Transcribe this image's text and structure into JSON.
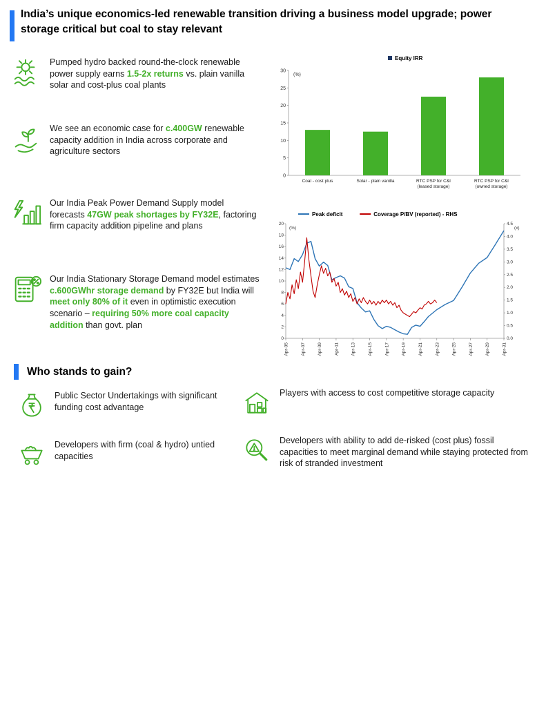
{
  "header": {
    "title": "India’s unique economics-led renewable transition driving a business model upgrade; power storage critical but coal to stay relevant",
    "accent_color": "#2378f3"
  },
  "colors": {
    "green_accent": "#43b02a",
    "blue_accent": "#2378f3",
    "legend_navy": "#1f3864",
    "peak_deficit_blue": "#2e75b6",
    "coverage_red": "#c00000"
  },
  "insights": [
    {
      "icon": "pumped-hydro-icon",
      "segments": [
        {
          "t": "Pumped hydro backed round-the-clock renewable power supply earns ",
          "h": false
        },
        {
          "t": "1.5-2x returns",
          "h": true
        },
        {
          "t": " vs. plain vanilla solar and cost-plus coal plants",
          "h": false
        }
      ]
    },
    {
      "icon": "hand-plant-icon",
      "segments": [
        {
          "t": "We see an economic case for ",
          "h": false
        },
        {
          "t": "c.400GW",
          "h": true
        },
        {
          "t": " renewable capacity addition in India across corporate and agriculture sectors",
          "h": false
        }
      ]
    },
    {
      "icon": "power-demand-icon",
      "segments": [
        {
          "t": "Our India Peak Power Demand Supply model forecasts ",
          "h": false
        },
        {
          "t": "47GW peak shortages by FY32E",
          "h": true
        },
        {
          "t": ", factoring firm capacity addition pipeline and plans",
          "h": false
        }
      ]
    },
    {
      "icon": "calculator-icon",
      "segments": [
        {
          "t": "Our India Stationary Storage Demand model estimates ",
          "h": false
        },
        {
          "t": "c.600GWhr storage demand",
          "h": true
        },
        {
          "t": " by FY32E but India will ",
          "h": false
        },
        {
          "t": "meet only 80% of it",
          "h": true
        },
        {
          "t": " even in optimistic execution scenario – ",
          "h": false
        },
        {
          "t": "requiring 50% more coal capacity addition",
          "h": true
        },
        {
          "t": " than govt. plan",
          "h": false
        }
      ]
    }
  ],
  "gain_section": {
    "heading": "Who stands to gain?",
    "items": [
      {
        "icon": "money-bag-icon",
        "text": "Public Sector Undertakings with significant funding cost advantage"
      },
      {
        "icon": "mine-cart-icon",
        "text": "Developers with firm (coal & hydro) untied capacities"
      },
      {
        "icon": "storage-warehouse-icon",
        "text": "Players with access to cost competitive storage capacity"
      },
      {
        "icon": "magnifier-alert-icon",
        "text": "Developers with ability to add de-risked (cost plus) fossil capacities to meet marginal demand while staying protected from risk of stranded investment"
      }
    ]
  },
  "chart_data": [
    {
      "type": "bar",
      "legend": "Equity IRR",
      "legend_color": "#1f3864",
      "unit": "(%)",
      "categories": [
        "Coal - cost plus",
        "Solar - plain vanilla",
        "RTC PSP for C&I\n(leased storage)",
        "RTC PSP for C&I\n(owned storage)"
      ],
      "values": [
        13,
        12.5,
        22.5,
        28
      ],
      "ylim": [
        0,
        30
      ],
      "ytick": 5,
      "bar_color": "#43b02a"
    },
    {
      "type": "line",
      "left_axis": {
        "label": "(%)",
        "min": 0,
        "max": 20,
        "step": 2
      },
      "right_axis": {
        "label": "(x)",
        "min": 0,
        "max": 4.5,
        "step": 0.5
      },
      "x_axis": {
        "min": 2005.25,
        "max": 2031.25,
        "tick_step": 2,
        "tick_labels": [
          "Apr-05",
          "Apr-07",
          "Apr-09",
          "Apr-11",
          "Apr-13",
          "Apr-15",
          "Apr-17",
          "Apr-19",
          "Apr-21",
          "Apr-23",
          "Apr-25",
          "Apr-27",
          "Apr-29",
          "Apr-31"
        ]
      },
      "series": [
        {
          "name": "Peak deficit",
          "color": "#2e75b6",
          "axis": "left",
          "points": [
            [
              2005.25,
              12.3
            ],
            [
              2005.75,
              12.0
            ],
            [
              2006.25,
              13.9
            ],
            [
              2006.75,
              13.4
            ],
            [
              2007.25,
              14.6
            ],
            [
              2007.75,
              16.6
            ],
            [
              2008.25,
              16.9
            ],
            [
              2008.75,
              13.9
            ],
            [
              2009.25,
              12.6
            ],
            [
              2009.75,
              13.3
            ],
            [
              2010.25,
              12.7
            ],
            [
              2010.75,
              10.2
            ],
            [
              2011.25,
              10.6
            ],
            [
              2011.75,
              10.9
            ],
            [
              2012.25,
              10.5
            ],
            [
              2012.75,
              9.0
            ],
            [
              2013.25,
              8.7
            ],
            [
              2013.75,
              6.2
            ],
            [
              2014.25,
              5.3
            ],
            [
              2014.75,
              4.6
            ],
            [
              2015.25,
              4.8
            ],
            [
              2015.75,
              3.3
            ],
            [
              2016.25,
              2.2
            ],
            [
              2016.75,
              1.7
            ],
            [
              2017.25,
              2.1
            ],
            [
              2017.75,
              1.9
            ],
            [
              2018.25,
              1.5
            ],
            [
              2018.75,
              1.1
            ],
            [
              2019.25,
              0.8
            ],
            [
              2019.75,
              0.7
            ],
            [
              2020.25,
              1.9
            ],
            [
              2020.75,
              2.3
            ],
            [
              2021.25,
              2.1
            ],
            [
              2021.75,
              2.9
            ],
            [
              2022.25,
              3.8
            ],
            [
              2022.75,
              4.4
            ],
            [
              2023.25,
              5.0
            ],
            [
              2024.25,
              5.9
            ],
            [
              2025.25,
              6.6
            ],
            [
              2026.25,
              8.9
            ],
            [
              2027.25,
              11.4
            ],
            [
              2028.25,
              13.1
            ],
            [
              2029.25,
              14.1
            ],
            [
              2030.25,
              16.4
            ],
            [
              2031.25,
              18.8
            ]
          ]
        },
        {
          "name": "Coverage P/BV (reported) - RHS",
          "color": "#c00000",
          "axis": "right",
          "points": [
            [
              2005.25,
              1.35
            ],
            [
              2005.5,
              1.8
            ],
            [
              2005.75,
              1.55
            ],
            [
              2006,
              2.1
            ],
            [
              2006.25,
              1.75
            ],
            [
              2006.5,
              2.3
            ],
            [
              2006.75,
              1.95
            ],
            [
              2007,
              2.6
            ],
            [
              2007.25,
              2.2
            ],
            [
              2007.5,
              3.0
            ],
            [
              2007.75,
              3.95
            ],
            [
              2008,
              3.1
            ],
            [
              2008.25,
              2.45
            ],
            [
              2008.5,
              1.85
            ],
            [
              2008.75,
              1.6
            ],
            [
              2009,
              2.1
            ],
            [
              2009.25,
              2.5
            ],
            [
              2009.5,
              2.85
            ],
            [
              2009.75,
              2.55
            ],
            [
              2010,
              2.75
            ],
            [
              2010.25,
              2.45
            ],
            [
              2010.5,
              2.6
            ],
            [
              2010.75,
              2.2
            ],
            [
              2011,
              2.35
            ],
            [
              2011.25,
              2.05
            ],
            [
              2011.5,
              2.2
            ],
            [
              2011.75,
              1.8
            ],
            [
              2012,
              1.95
            ],
            [
              2012.25,
              1.7
            ],
            [
              2012.5,
              1.85
            ],
            [
              2012.75,
              1.6
            ],
            [
              2013,
              1.75
            ],
            [
              2013.25,
              1.45
            ],
            [
              2013.5,
              1.6
            ],
            [
              2013.75,
              1.35
            ],
            [
              2014,
              1.55
            ],
            [
              2014.25,
              1.4
            ],
            [
              2014.5,
              1.6
            ],
            [
              2014.75,
              1.45
            ],
            [
              2015,
              1.35
            ],
            [
              2015.25,
              1.5
            ],
            [
              2015.5,
              1.35
            ],
            [
              2015.75,
              1.45
            ],
            [
              2016,
              1.3
            ],
            [
              2016.25,
              1.45
            ],
            [
              2016.5,
              1.35
            ],
            [
              2016.75,
              1.5
            ],
            [
              2017,
              1.4
            ],
            [
              2017.25,
              1.5
            ],
            [
              2017.5,
              1.35
            ],
            [
              2017.75,
              1.45
            ],
            [
              2018,
              1.3
            ],
            [
              2018.25,
              1.4
            ],
            [
              2018.5,
              1.2
            ],
            [
              2018.75,
              1.3
            ],
            [
              2019,
              1.1
            ],
            [
              2019.25,
              1.0
            ],
            [
              2019.5,
              0.95
            ],
            [
              2019.75,
              0.9
            ],
            [
              2020,
              0.85
            ],
            [
              2020.25,
              0.95
            ],
            [
              2020.5,
              1.05
            ],
            [
              2020.75,
              1.0
            ],
            [
              2021,
              1.1
            ],
            [
              2021.25,
              1.2
            ],
            [
              2021.5,
              1.15
            ],
            [
              2021.75,
              1.3
            ],
            [
              2022,
              1.35
            ],
            [
              2022.25,
              1.45
            ],
            [
              2022.5,
              1.35
            ],
            [
              2022.75,
              1.4
            ],
            [
              2023,
              1.5
            ],
            [
              2023.25,
              1.4
            ]
          ]
        }
      ]
    }
  ]
}
